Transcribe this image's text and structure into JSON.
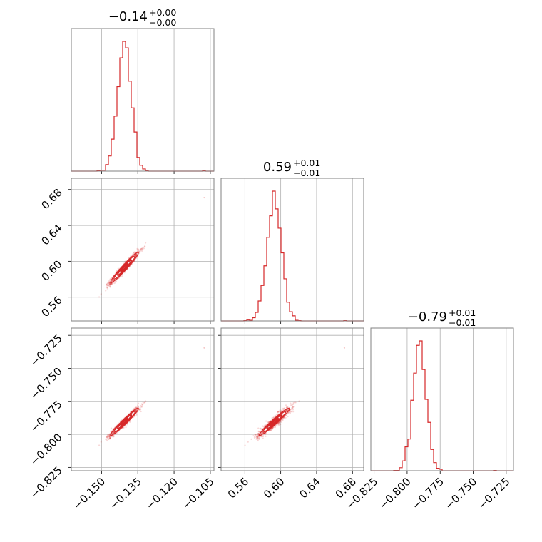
{
  "colors": {
    "series": "#d62728",
    "grid": "#b0b0b0",
    "frame": "#808080"
  },
  "chart_data": {
    "type": "corner",
    "parameters": [
      {
        "title_value": "−0.14",
        "title_plus": "+0.00",
        "title_minus": "−0.00",
        "range": [
          -0.1625,
          -0.1035
        ],
        "ticks": [
          -0.15,
          -0.135,
          -0.12,
          -0.105
        ],
        "tick_labels": [
          "−0.150",
          "−0.135",
          "−0.120",
          "−0.105"
        ],
        "mean": -0.1405,
        "sd": 0.0029
      },
      {
        "title_value": "0.59",
        "title_plus": "+0.01",
        "title_minus": "−0.01",
        "range": [
          0.5335,
          0.6925
        ],
        "ticks": [
          0.56,
          0.6,
          0.64,
          0.68
        ],
        "tick_labels": [
          "0.56",
          "0.60",
          "0.64",
          "0.68"
        ],
        "mean": 0.593,
        "sd": 0.0085
      },
      {
        "title_value": "−0.79",
        "title_plus": "+0.01",
        "title_minus": "−0.01",
        "range": [
          -0.8275,
          -0.7195
        ],
        "ticks": [
          -0.825,
          -0.8,
          -0.775,
          -0.75,
          -0.725
        ],
        "tick_labels": [
          "−0.825",
          "−0.800",
          "−0.775",
          "−0.750",
          "−0.725"
        ],
        "mean": -0.7905,
        "sd": 0.0052
      }
    ],
    "correlation": 0.97,
    "outlier": [
      -0.1075,
      0.671,
      -0.7345
    ],
    "histogram_bins": 50,
    "grid": true
  }
}
